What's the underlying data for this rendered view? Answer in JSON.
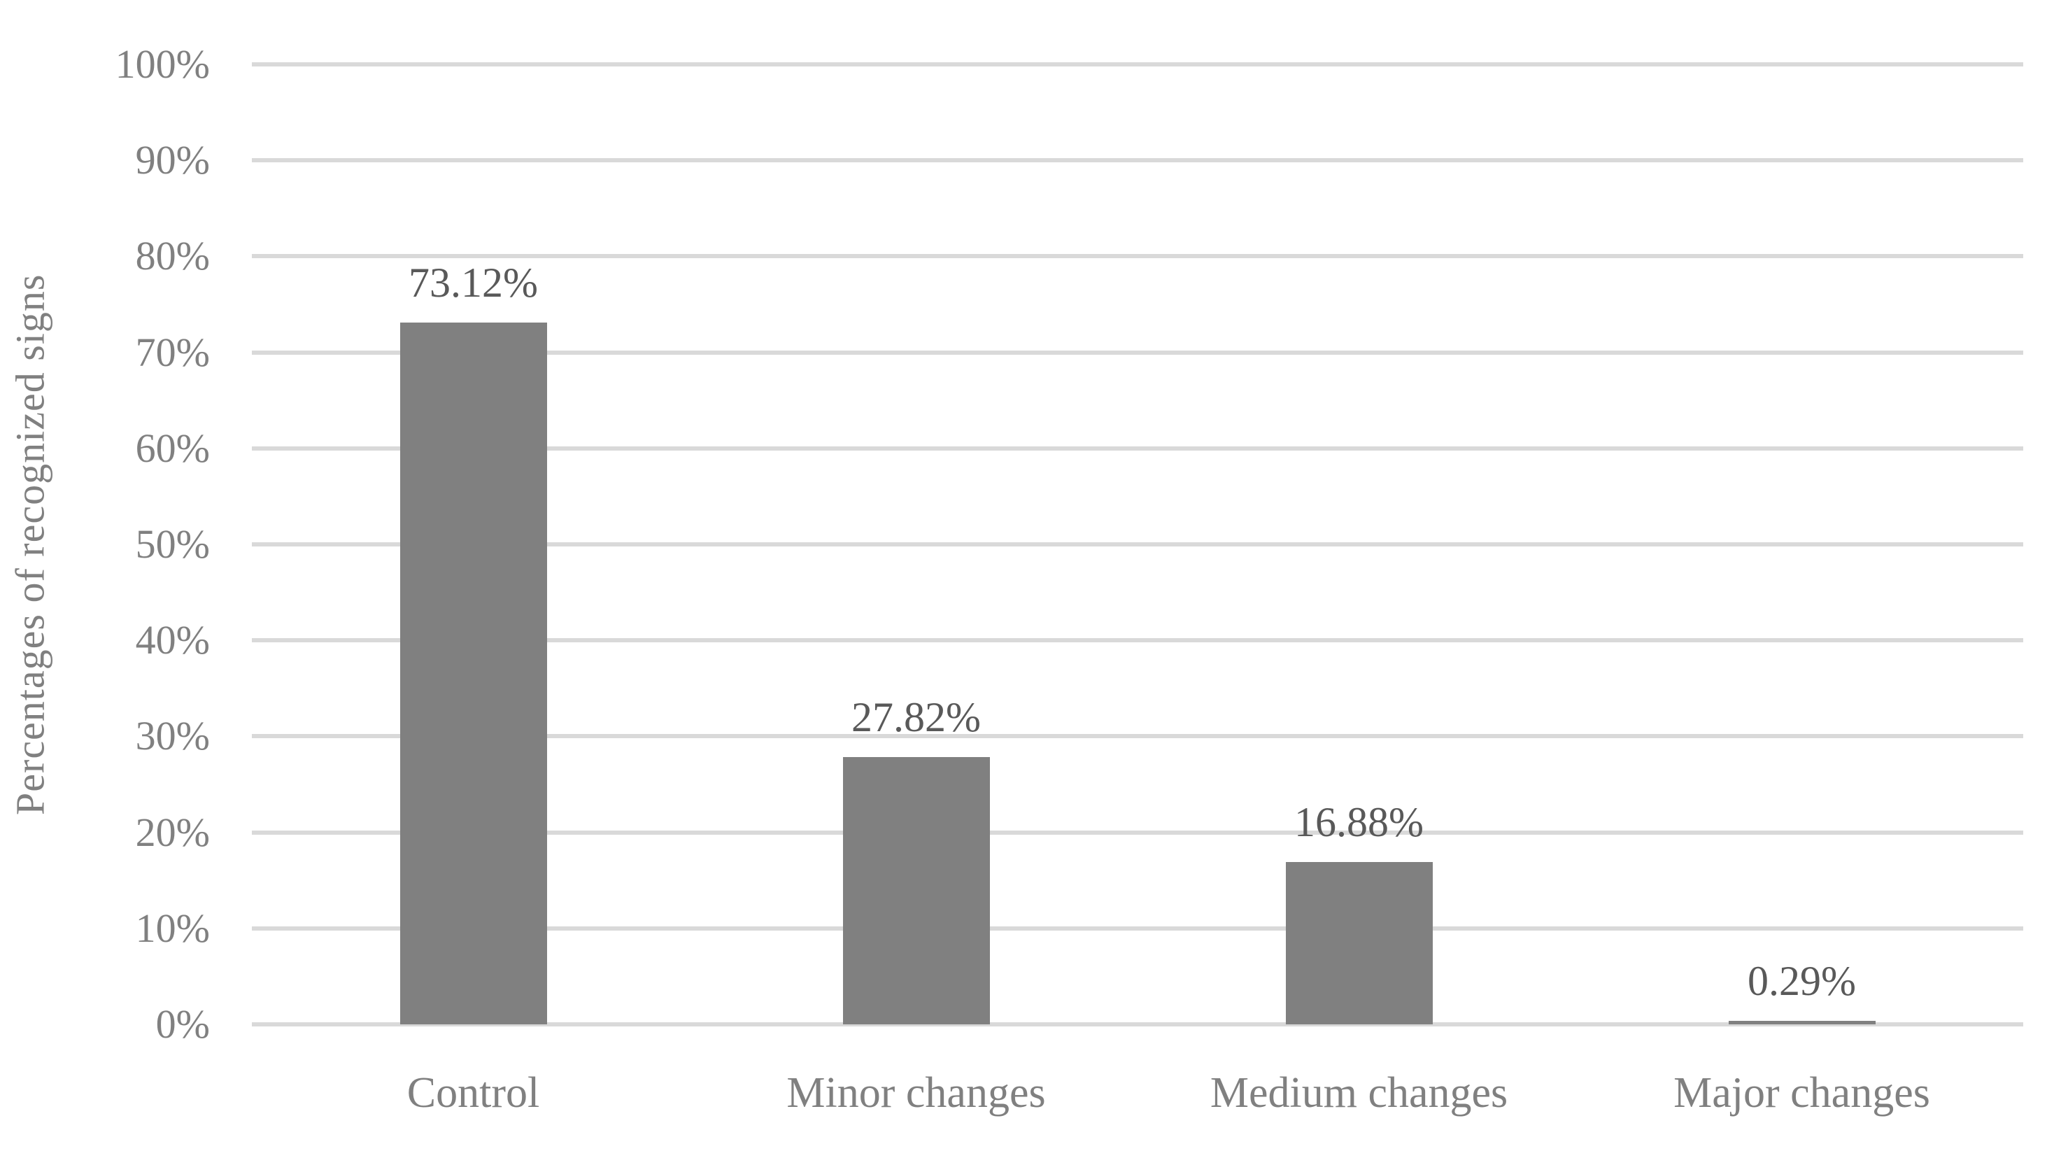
{
  "chart_data": {
    "type": "bar",
    "title": "",
    "xlabel": "",
    "ylabel": "Percentages of recognized signs",
    "categories": [
      "Control",
      "Minor changes",
      "Medium changes",
      "Major changes"
    ],
    "values": [
      73.12,
      27.82,
      16.88,
      0.29
    ],
    "data_labels": [
      "73.12%",
      "27.82%",
      "16.88%",
      "0.29%"
    ],
    "ylim": [
      0,
      100
    ],
    "ytick_step": 10,
    "ytick_labels": [
      "0%",
      "10%",
      "20%",
      "30%",
      "40%",
      "50%",
      "60%",
      "70%",
      "80%",
      "90%",
      "100%"
    ],
    "grid": true,
    "legend": "none",
    "colors": {
      "bar": "#808080",
      "gridline": "#D9D9D9",
      "axis_text": "#808080",
      "data_label": "#595959",
      "background": "#FFFFFF"
    }
  }
}
